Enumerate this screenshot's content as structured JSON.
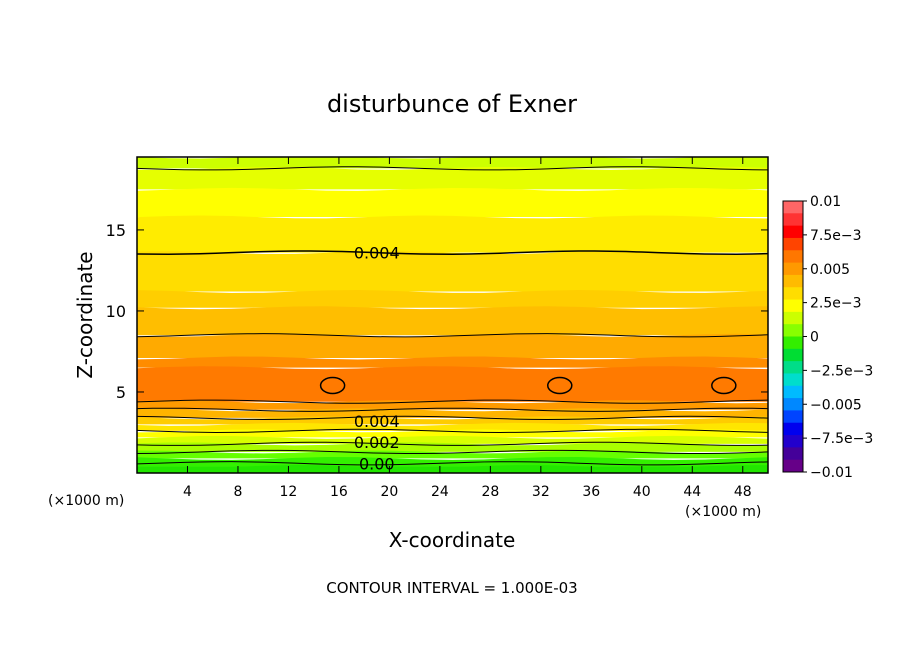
{
  "chart_data": {
    "type": "contour",
    "title": "disturbunce of Exner",
    "xlabel": "X-coordinate",
    "ylabel": "Z-coordinate",
    "x_unit": "(×1000 m)",
    "x_unit_right": "(×1000 m)",
    "footer": "CONTOUR INTERVAL = 1.000E-03",
    "xlim": [
      0,
      50
    ],
    "ylim": [
      0,
      19.5
    ],
    "x_ticks": [
      4,
      8,
      12,
      16,
      20,
      24,
      28,
      32,
      36,
      40,
      44,
      48
    ],
    "y_ticks": [
      5,
      10,
      15
    ],
    "contour_interval": 0.001,
    "contour_labels": [
      {
        "text": "0.004",
        "x": 19,
        "z": 13.6
      },
      {
        "text": "0.004",
        "x": 19,
        "z": 3.2
      },
      {
        "text": "0.002",
        "x": 19,
        "z": 1.9
      },
      {
        "text": "0.00",
        "x": 19,
        "z": 0.6
      }
    ],
    "bands": [
      {
        "z": 19.5,
        "color": "#ccff00"
      },
      {
        "z": 18.8,
        "color": "#e6ff00"
      },
      {
        "z": 17.5,
        "color": "#ffff00"
      },
      {
        "z": 15.8,
        "color": "#ffec00"
      },
      {
        "z": 13.6,
        "color": "#ffdd00"
      },
      {
        "z": 11.2,
        "color": "#ffce00"
      },
      {
        "z": 10.2,
        "color": "#ffbe00"
      },
      {
        "z": 8.5,
        "color": "#ffaa00"
      },
      {
        "z": 7.1,
        "color": "#ff8c00"
      },
      {
        "z": 6.5,
        "color": "#ff7a00"
      },
      {
        "z": 4.4,
        "color": "#ff9a00"
      },
      {
        "z": 3.9,
        "color": "#ffb400"
      },
      {
        "z": 3.4,
        "color": "#ffcc00"
      },
      {
        "z": 3.0,
        "color": "#ffe600"
      },
      {
        "z": 2.6,
        "color": "#ffff00"
      },
      {
        "z": 2.2,
        "color": "#d8ff00"
      },
      {
        "z": 1.8,
        "color": "#aaff00"
      },
      {
        "z": 1.3,
        "color": "#66ff00"
      },
      {
        "z": 0.9,
        "color": "#33f000"
      },
      {
        "z": 0.4,
        "color": "#22e600"
      }
    ],
    "contour_lines_z": [
      18.8,
      13.6,
      8.5,
      4.4,
      3.9,
      3.4,
      2.6,
      1.8,
      1.3,
      0.6
    ],
    "closed_contours": [
      {
        "x": 15.5,
        "z": 5.4
      },
      {
        "x": 33.5,
        "z": 5.4
      },
      {
        "x": 46.5,
        "z": 5.4
      }
    ],
    "colorbar": {
      "labels": [
        "0.01",
        "7.5e−3",
        "0.005",
        "2.5e−3",
        "0",
        "−2.5e−3",
        "−0.005",
        "−7.5e−3",
        "−0.01"
      ],
      "colors": [
        "#ff6666",
        "#ff3333",
        "#ff0000",
        "#ff4400",
        "#ff7700",
        "#ff9900",
        "#ffbb00",
        "#ffdd00",
        "#ffff00",
        "#ccff00",
        "#88ff00",
        "#33ee00",
        "#00dd33",
        "#00dd88",
        "#00ddcc",
        "#00bbff",
        "#0088ff",
        "#0044ff",
        "#0000ee",
        "#2200cc",
        "#440099",
        "#660088"
      ]
    }
  }
}
